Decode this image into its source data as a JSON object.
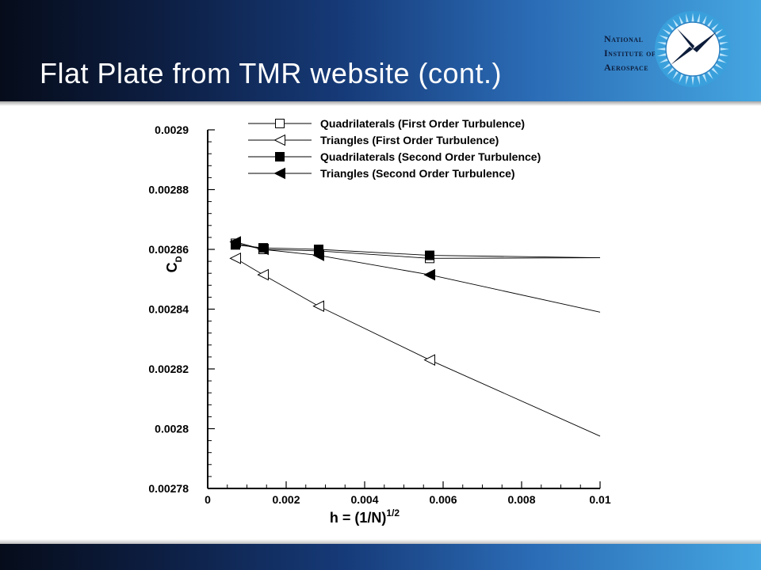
{
  "slide": {
    "title": "Flat Plate from TMR website (cont.)",
    "logo_lines": [
      "National",
      "Institute of",
      "Aerospace"
    ]
  },
  "colors": {
    "header_dark": "#060c1a",
    "header_light": "#45a6e0",
    "logo_blue": "#3aa0dc"
  },
  "chart_data": {
    "type": "line",
    "xlabel": "h = (1/N)",
    "xlabel_sup": "1/2",
    "ylabel": "C",
    "ylabel_sub": "D",
    "xlim": [
      0,
      0.01
    ],
    "ylim": [
      0.00278,
      0.0029
    ],
    "x_ticks": [
      0,
      0.002,
      0.004,
      0.006,
      0.008,
      0.01
    ],
    "x_tick_labels": [
      "0",
      "0.002",
      "0.004",
      "0.006",
      "0.008",
      "0.01"
    ],
    "y_ticks": [
      0.00278,
      0.0028,
      0.00282,
      0.00284,
      0.00286,
      0.00288,
      0.0029
    ],
    "y_tick_labels": [
      "0.00278",
      "0.0028",
      "0.00282",
      "0.00284",
      "0.00286",
      "0.00288",
      "0.0029"
    ],
    "grid": false,
    "legend_position": "top",
    "series": [
      {
        "name": "Quadrilaterals (First Order Turbulence)",
        "marker": "square-open",
        "x": [
          0.000707,
          0.001414,
          0.002828,
          0.005657
        ],
        "y": [
          0.002862,
          0.00286,
          0.0028595,
          0.002857
        ],
        "fit_end": [
          0.01,
          0.0028572
        ]
      },
      {
        "name": "Triangles (First Order Turbulence)",
        "marker": "triangle-left-open",
        "x": [
          0.000707,
          0.001414,
          0.002828,
          0.005657
        ],
        "y": [
          0.002857,
          0.0028515,
          0.002841,
          0.002823
        ],
        "fit_end": [
          0.01,
          0.0027975
        ]
      },
      {
        "name": "Quadrilaterals (Second Order Turbulence)",
        "marker": "square-filled",
        "x": [
          0.000707,
          0.001414,
          0.002828,
          0.005657
        ],
        "y": [
          0.0028615,
          0.0028605,
          0.00286,
          0.002858
        ],
        "fit_end": [
          0.01,
          0.0028572
        ]
      },
      {
        "name": "Triangles (Second Order Turbulence)",
        "marker": "triangle-left-filled",
        "x": [
          0.000707,
          0.001414,
          0.002828,
          0.005657
        ],
        "y": [
          0.0028625,
          0.00286,
          0.002858,
          0.0028515
        ],
        "fit_end": [
          0.01,
          0.002839
        ]
      }
    ]
  }
}
